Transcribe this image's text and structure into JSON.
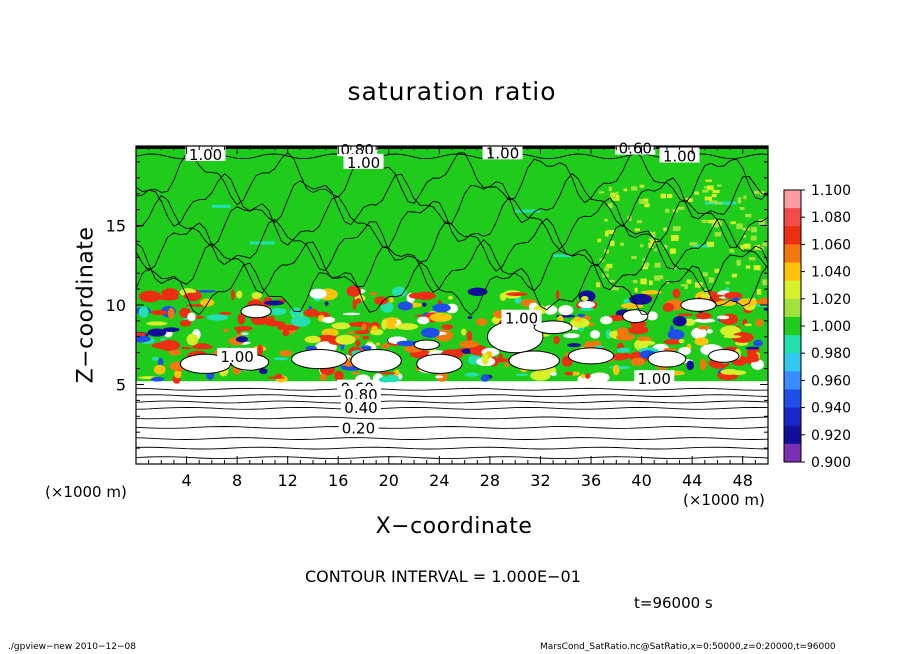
{
  "title": "saturation ratio",
  "xlabel": "X−coordinate",
  "ylabel": "Z−coordinate",
  "xunit_left": "(×1000 m)",
  "xunit_right": "(×1000 m)",
  "contour_interval": "CONTOUR INTERVAL = 1.000E−01",
  "time_label": "t=96000 s",
  "footer_left": "./gpview−new   2010−12−08",
  "footer_right": "MarsCond_SatRatio.nc@SatRatio,x=0:50000,z=0:20000,t=96000",
  "chart_data": {
    "type": "heatmap",
    "title": "saturation ratio",
    "xlabel": "X−coordinate",
    "ylabel": "Z−coordinate",
    "x_unit": "(×1000 m)",
    "xlim": [
      0,
      50
    ],
    "ylim": [
      0,
      20
    ],
    "x_ticks": [
      4,
      8,
      12,
      16,
      20,
      24,
      28,
      32,
      36,
      40,
      44,
      48
    ],
    "y_ticks": [
      5,
      10,
      15
    ],
    "colorbar": {
      "labels": [
        "1.100",
        "1.080",
        "1.060",
        "1.040",
        "1.020",
        "1.000",
        "0.980",
        "0.960",
        "0.940",
        "0.920",
        "0.900"
      ],
      "colors": [
        "#fa9ea4",
        "#f34a4a",
        "#ec2e13",
        "#f3770f",
        "#ffc30d",
        "#d6f02c",
        "#a0e23b",
        "#1fcc1b",
        "#22e0b0",
        "#33c8f0",
        "#3a8cff",
        "#1f4fe8",
        "#1828c8",
        "#0f0f9a",
        "#7c2fb2"
      ]
    },
    "contour_labels": [
      {
        "text": "1.00",
        "x": 5.5,
        "y": 19.5
      },
      {
        "text": "0.80",
        "x": 17.5,
        "y": 19.8
      },
      {
        "text": "1.00",
        "x": 18.0,
        "y": 19.0
      },
      {
        "text": "1.00",
        "x": 29.0,
        "y": 19.6
      },
      {
        "text": "0.60",
        "x": 39.5,
        "y": 19.9
      },
      {
        "text": "1.00",
        "x": 43.0,
        "y": 19.4
      },
      {
        "text": "1.00",
        "x": 30.5,
        "y": 9.2
      },
      {
        "text": "1.00",
        "x": 8.0,
        "y": 6.8
      },
      {
        "text": "1.00",
        "x": 41.0,
        "y": 5.4
      },
      {
        "text": "0.60",
        "x": 17.5,
        "y": 4.8
      },
      {
        "text": "0.80",
        "x": 17.8,
        "y": 4.4
      },
      {
        "text": "0.40",
        "x": 17.8,
        "y": 3.6
      },
      {
        "text": "0.20",
        "x": 17.6,
        "y": 2.3
      }
    ],
    "contour_interval": 0.1,
    "time_seconds": 96000
  },
  "colors": {
    "background": "#ffffff",
    "green": "#1fcc1b",
    "red": "#ec2e13",
    "white": "#ffffff",
    "blue": "#1f4fe8",
    "cyan": "#22e0b0",
    "yellow": "#ffc30d",
    "axis": "#000000"
  }
}
